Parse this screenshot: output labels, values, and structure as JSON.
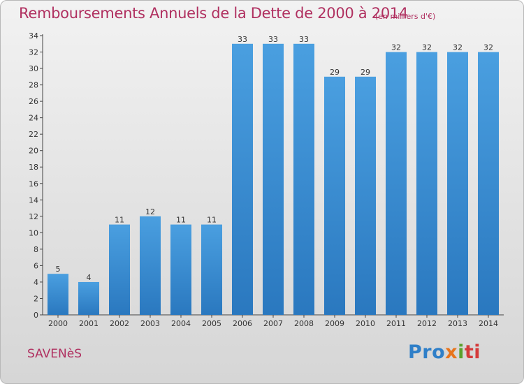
{
  "chart_data": {
    "type": "bar",
    "title": "Remboursements Annuels de la Dette de 2000 à 2014",
    "subtitle": "(en milliers d'€)",
    "categories": [
      "2000",
      "2001",
      "2002",
      "2003",
      "2004",
      "2005",
      "2006",
      "2007",
      "2008",
      "2009",
      "2010",
      "2011",
      "2012",
      "2013",
      "2014"
    ],
    "values": [
      5,
      4,
      11,
      12,
      11,
      11,
      33,
      33,
      33,
      29,
      29,
      32,
      32,
      32,
      32
    ],
    "ylim": [
      0,
      34
    ],
    "yticks": [
      0,
      2,
      4,
      6,
      8,
      10,
      12,
      14,
      16,
      18,
      20,
      22,
      24,
      26,
      28,
      30,
      32,
      34
    ],
    "xlabel": "",
    "ylabel": "",
    "grid": false,
    "bar_color": "#4a9fe0",
    "bar_color_dark": "#2a78bf"
  },
  "footer": {
    "town": "SAVENèS",
    "logo_parts": [
      "Pro",
      "x",
      "i",
      "ti"
    ]
  }
}
